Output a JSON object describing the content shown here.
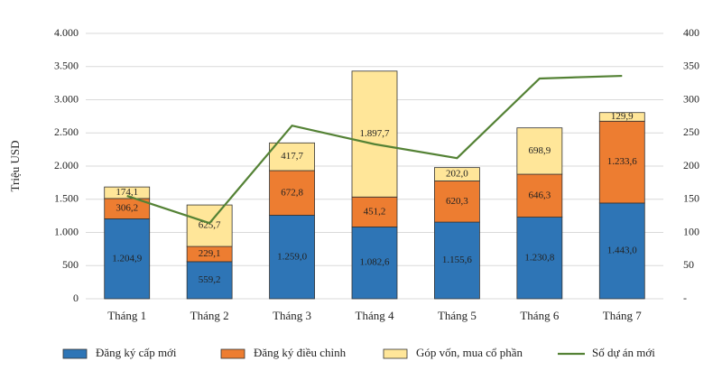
{
  "chart_data": {
    "type": "bar",
    "stacked": true,
    "y_label": "Triệu USD",
    "categories": [
      "Tháng 1",
      "Tháng 2",
      "Tháng 3",
      "Tháng 4",
      "Tháng 5",
      "Tháng 6",
      "Tháng 7"
    ],
    "series": [
      {
        "name": "Đăng ký cấp mới",
        "color": "#2e75b6",
        "values": [
          1204.9,
          559.2,
          1259.0,
          1082.6,
          1155.6,
          1230.8,
          1443.0
        ],
        "value_labels": [
          "1.204,9",
          "559,2",
          "1.259,0",
          "1.082,6",
          "1.155,6",
          "1.230,8",
          "1.443,0"
        ]
      },
      {
        "name": "Đăng ký điều chỉnh",
        "color": "#ed7d31",
        "values": [
          306.2,
          229.1,
          672.8,
          451.2,
          620.3,
          646.3,
          1233.6
        ],
        "value_labels": [
          "306,2",
          "229,1",
          "672,8",
          "451,2",
          "620,3",
          "646,3",
          "1.233,6"
        ]
      },
      {
        "name": "Góp vốn, mua cổ phần",
        "color": "#ffe699",
        "values": [
          174.1,
          625.7,
          417.7,
          1897.7,
          202.0,
          698.9,
          129.9
        ],
        "value_labels": [
          "174,1",
          "625,7",
          "417,7",
          "1.897,7",
          "202,0",
          "698,9",
          "129,9"
        ]
      },
      {
        "name": "Số dự án mới",
        "color": "#548235",
        "type": "line",
        "axis": "y2",
        "values": [
          155,
          114,
          261,
          233,
          212,
          332,
          336
        ]
      }
    ],
    "ylim": [
      0,
      4000
    ],
    "yticks": [
      0,
      {
        "value": 500,
        "label": "500"
      },
      {
        "value": 1000,
        "label": "1.000"
      },
      {
        "value": 1500,
        "label": "1.500"
      },
      {
        "value": 2000,
        "label": "2.000"
      },
      {
        "value": 2500,
        "label": "2.500"
      },
      {
        "value": 3000,
        "label": "3.000"
      },
      {
        "value": 3500,
        "label": "3.500"
      },
      {
        "value": 4000,
        "label": "4.000"
      }
    ],
    "y2lim": [
      0,
      400
    ],
    "y2ticks": [
      {
        "value": 0,
        "label": "-"
      },
      50,
      100,
      150,
      200,
      250,
      300,
      350,
      400
    ],
    "grid": true,
    "legend": "bottom"
  }
}
